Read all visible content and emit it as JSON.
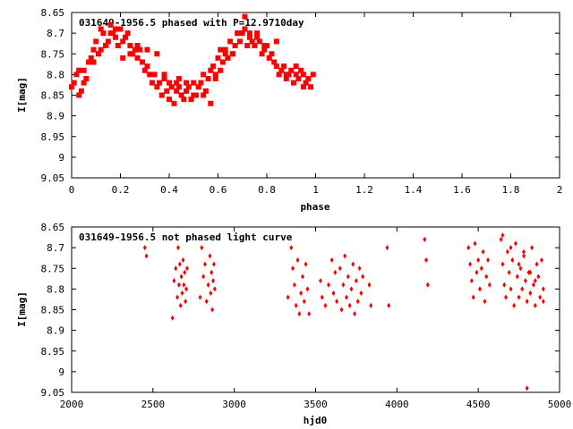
{
  "chart_data": [
    {
      "type": "scatter",
      "title": "031649-1956.5 phased with P=12.9710day",
      "xlabel": "phase",
      "ylabel": "I[mag]",
      "xlim": [
        0,
        2
      ],
      "ylim": [
        9.05,
        8.65
      ],
      "y_inverted": true,
      "grid": false,
      "marker": "filled-square",
      "color": "#ff0000",
      "xticks": [
        "0",
        "0.2",
        "0.4",
        "0.6",
        "0.8",
        "1",
        "1.2",
        "1.4",
        "1.6",
        "1.8",
        "2"
      ],
      "yticks": [
        "8.65",
        "8.7",
        "8.75",
        "8.8",
        "8.85",
        "8.9",
        "8.95",
        "9",
        "9.05"
      ],
      "x": [
        0.0,
        0.01,
        0.02,
        0.03,
        0.04,
        0.05,
        0.06,
        0.07,
        0.08,
        0.09,
        0.1,
        0.11,
        0.12,
        0.13,
        0.14,
        0.15,
        0.16,
        0.17,
        0.18,
        0.19,
        0.2,
        0.21,
        0.22,
        0.23,
        0.24,
        0.25,
        0.26,
        0.27,
        0.28,
        0.29,
        0.3,
        0.31,
        0.32,
        0.33,
        0.34,
        0.35,
        0.36,
        0.37,
        0.38,
        0.39,
        0.4,
        0.41,
        0.42,
        0.43,
        0.44,
        0.45,
        0.46,
        0.47,
        0.48,
        0.49,
        0.5,
        0.51,
        0.52,
        0.53,
        0.54,
        0.55,
        0.56,
        0.57,
        0.58,
        0.59,
        0.6,
        0.61,
        0.62,
        0.63,
        0.64,
        0.65,
        0.66,
        0.67,
        0.68,
        0.69,
        0.7,
        0.71,
        0.72,
        0.73,
        0.74,
        0.75,
        0.76,
        0.77,
        0.78,
        0.79,
        0.8,
        0.81,
        0.82,
        0.83,
        0.84,
        0.85,
        0.86,
        0.87,
        0.88,
        0.89,
        0.9,
        0.91,
        0.92,
        0.93,
        0.94,
        0.95,
        0.96,
        0.97,
        0.98,
        0.99,
        0.21,
        0.05,
        0.12,
        0.27,
        0.44,
        0.57,
        0.63,
        0.71,
        0.76,
        0.92,
        0.35,
        0.18,
        0.66,
        0.03,
        0.4,
        0.54,
        0.68,
        0.84,
        0.09,
        0.31,
        0.47,
        0.59,
        0.73,
        0.88,
        0.16,
        0.24,
        0.38,
        0.5,
        0.61,
        0.79,
        0.95,
        0.14,
        0.43
      ],
      "y": [
        8.83,
        8.82,
        8.8,
        8.79,
        8.84,
        8.82,
        8.81,
        8.77,
        8.76,
        8.74,
        8.72,
        8.75,
        8.74,
        8.7,
        8.73,
        8.72,
        8.68,
        8.7,
        8.71,
        8.73,
        8.69,
        8.72,
        8.71,
        8.7,
        8.73,
        8.75,
        8.74,
        8.76,
        8.74,
        8.77,
        8.79,
        8.78,
        8.8,
        8.82,
        8.8,
        8.83,
        8.82,
        8.85,
        8.81,
        8.84,
        8.86,
        8.83,
        8.87,
        8.84,
        8.83,
        8.85,
        8.86,
        8.84,
        8.83,
        8.86,
        8.82,
        8.85,
        8.83,
        8.82,
        8.8,
        8.84,
        8.81,
        8.79,
        8.78,
        8.8,
        8.76,
        8.79,
        8.77,
        8.74,
        8.76,
        8.72,
        8.75,
        8.73,
        8.7,
        8.72,
        8.7,
        8.69,
        8.73,
        8.71,
        8.72,
        8.73,
        8.7,
        8.72,
        8.75,
        8.74,
        8.73,
        8.76,
        8.75,
        8.77,
        8.78,
        8.8,
        8.79,
        8.78,
        8.81,
        8.8,
        8.79,
        8.82,
        8.8,
        8.81,
        8.79,
        8.8,
        8.82,
        8.81,
        8.83,
        8.8,
        8.76,
        8.79,
        8.69,
        8.73,
        8.81,
        8.87,
        8.75,
        8.66,
        8.71,
        8.78,
        8.75,
        8.69,
        8.75,
        8.85,
        8.82,
        8.85,
        8.7,
        8.72,
        8.77,
        8.74,
        8.82,
        8.81,
        8.7,
        8.8,
        8.7,
        8.75,
        8.8,
        8.85,
        8.74,
        8.73,
        8.83,
        8.73,
        8.82
      ]
    },
    {
      "type": "scatter",
      "title": "031649-1956.5 not phased light curve",
      "xlabel": "hjd0",
      "ylabel": "I[mag]",
      "xlim": [
        2000,
        5000
      ],
      "ylim": [
        9.05,
        8.65
      ],
      "y_inverted": true,
      "grid": false,
      "marker": "diamond",
      "color": "#ff0000",
      "xticks": [
        "2000",
        "2500",
        "3000",
        "3500",
        "4000",
        "4500",
        "5000"
      ],
      "yticks": [
        "8.65",
        "8.7",
        "8.75",
        "8.8",
        "8.85",
        "8.9",
        "8.95",
        "9",
        "9.05"
      ],
      "x": [
        2450,
        2460,
        2620,
        2630,
        2640,
        2650,
        2655,
        2660,
        2665,
        2670,
        2675,
        2680,
        2685,
        2690,
        2695,
        2700,
        2705,
        2710,
        2790,
        2800,
        2810,
        2820,
        2830,
        2840,
        2850,
        2855,
        2860,
        2865,
        2870,
        2875,
        2880,
        3330,
        3350,
        3360,
        3370,
        3380,
        3390,
        3400,
        3410,
        3420,
        3430,
        3440,
        3450,
        3460,
        3530,
        3540,
        3560,
        3580,
        3600,
        3610,
        3620,
        3630,
        3650,
        3660,
        3670,
        3680,
        3690,
        3700,
        3710,
        3720,
        3730,
        3740,
        3750,
        3760,
        3770,
        3780,
        3790,
        3830,
        3840,
        3940,
        3950,
        4170,
        4180,
        4190,
        4440,
        4450,
        4460,
        4470,
        4480,
        4490,
        4500,
        4510,
        4520,
        4530,
        4540,
        4550,
        4560,
        4570,
        4640,
        4650,
        4660,
        4670,
        4680,
        4690,
        4700,
        4710,
        4720,
        4730,
        4740,
        4750,
        4760,
        4770,
        4780,
        4790,
        4800,
        4810,
        4820,
        4830,
        4840,
        4850,
        4860,
        4870,
        4880,
        4890,
        4900,
        4650,
        4700,
        4750,
        4800,
        4850,
        4900,
        4780,
        4820
      ],
      "y": [
        8.7,
        8.72,
        8.87,
        8.78,
        8.75,
        8.82,
        8.7,
        8.79,
        8.74,
        8.84,
        8.77,
        8.81,
        8.73,
        8.79,
        8.76,
        8.83,
        8.8,
        8.75,
        8.82,
        8.7,
        8.77,
        8.74,
        8.83,
        8.79,
        8.72,
        8.81,
        8.76,
        8.85,
        8.78,
        8.74,
        8.8,
        8.82,
        8.7,
        8.75,
        8.79,
        8.84,
        8.73,
        8.86,
        8.81,
        8.77,
        8.83,
        8.74,
        8.8,
        8.86,
        8.78,
        8.82,
        8.84,
        8.79,
        8.73,
        8.81,
        8.76,
        8.83,
        8.75,
        8.85,
        8.79,
        8.72,
        8.82,
        8.77,
        8.84,
        8.8,
        8.74,
        8.86,
        8.78,
        8.83,
        8.75,
        8.81,
        8.77,
        8.79,
        8.84,
        8.7,
        8.84,
        8.68,
        8.73,
        8.79,
        8.7,
        8.74,
        8.78,
        8.82,
        8.69,
        8.76,
        8.73,
        8.8,
        8.75,
        8.71,
        8.83,
        8.77,
        8.73,
        8.79,
        8.68,
        8.74,
        8.79,
        8.82,
        8.71,
        8.76,
        8.8,
        8.73,
        8.84,
        8.69,
        8.77,
        8.82,
        8.75,
        8.8,
        8.72,
        8.78,
        8.83,
        8.76,
        8.81,
        8.7,
        8.79,
        8.84,
        8.74,
        8.77,
        8.82,
        8.73,
        8.8,
        8.67,
        8.7,
        8.74,
        9.04,
        8.78,
        8.83,
        8.71,
        8.76
      ]
    }
  ]
}
